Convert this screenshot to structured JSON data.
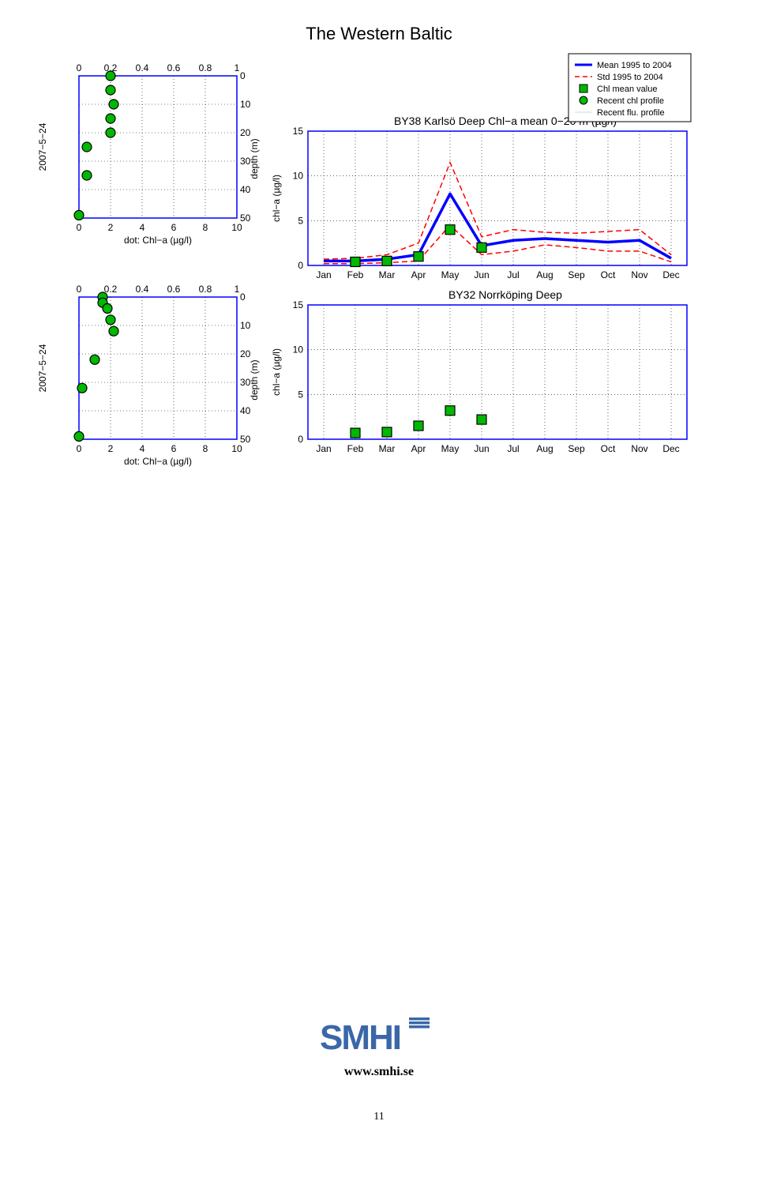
{
  "page_title": "The Western Baltic",
  "footer_url": "www.smhi.se",
  "page_number": "11",
  "logo_text": "SMHI",
  "logo_color": "#3a67a8",
  "legend": {
    "items": [
      {
        "label": "Mean 1995 to 2004",
        "type": "line",
        "color": "#0000ff",
        "width": 3,
        "dash": "none"
      },
      {
        "label": "Std 1995 to 2004",
        "type": "line",
        "color": "#ff0000",
        "width": 1.5,
        "dash": "6,4"
      },
      {
        "label": "Chl mean value",
        "type": "square",
        "fill": "#00b800",
        "stroke": "#000000"
      },
      {
        "label": "Recent chl profile",
        "type": "circle",
        "fill": "#00b800",
        "stroke": "#000000"
      },
      {
        "label": "Recent flu. profile",
        "type": "line",
        "color": "#c0e0c0",
        "width": 1,
        "dash": "none"
      }
    ]
  },
  "profile_common": {
    "date_label": "2007−5−24",
    "yaxis_label": "depth (m)",
    "xlabel_bottom": "dot: Chl−a (µg/l)",
    "top_ticks": [
      0,
      0.2,
      0.4,
      0.6,
      0.8,
      1
    ],
    "bottom_ticks": [
      0,
      2,
      4,
      6,
      8,
      10
    ],
    "depth_ticks": [
      0,
      10,
      20,
      30,
      40,
      50
    ],
    "depth_range": [
      0,
      50
    ],
    "box_color": "#0000ff",
    "grid_style": "1,3",
    "grid_color": "#000000",
    "dot_fill": "#00b800",
    "dot_stroke": "#000000",
    "dot_radius": 6
  },
  "profile1": {
    "dots_chl_depth": [
      [
        0.2,
        0
      ],
      [
        0.2,
        5
      ],
      [
        0.22,
        10
      ],
      [
        0.2,
        15
      ],
      [
        0.2,
        20
      ],
      [
        0.05,
        25
      ],
      [
        0.05,
        35
      ],
      [
        0.0,
        49
      ]
    ]
  },
  "profile2": {
    "dots_chl_depth": [
      [
        0.15,
        0
      ],
      [
        0.15,
        2
      ],
      [
        0.18,
        4
      ],
      [
        0.2,
        8
      ],
      [
        0.22,
        12
      ],
      [
        0.1,
        22
      ],
      [
        0.02,
        32
      ],
      [
        0.0,
        49
      ]
    ]
  },
  "ts_common": {
    "yaxis_label": "chl−a (µg/l)",
    "y_ticks": [
      0,
      5,
      10,
      15
    ],
    "y_range": [
      0,
      15
    ],
    "months": [
      "Jan",
      "Feb",
      "Mar",
      "Apr",
      "May",
      "Jun",
      "Jul",
      "Aug",
      "Sep",
      "Oct",
      "Nov",
      "Dec"
    ],
    "box_color": "#0000ff",
    "grid_style": "1,3",
    "grid_color": "#000000",
    "mean_color": "#0000ff",
    "mean_width": 3.5,
    "std_color": "#ff0000",
    "std_width": 1.5,
    "std_dash": "7,4",
    "square_fill": "#00b800",
    "square_stroke": "#000000",
    "square_size": 12
  },
  "ts1": {
    "title": "BY38 Karlsö Deep Chl−a mean 0−20 m (µg/l)",
    "mean": [
      0.5,
      0.5,
      0.7,
      1.2,
      8.0,
      2.2,
      2.8,
      3.0,
      2.8,
      2.6,
      2.8,
      0.8
    ],
    "std_upper": [
      0.7,
      0.8,
      1.2,
      2.5,
      11.5,
      3.2,
      4.0,
      3.7,
      3.6,
      3.8,
      4.0,
      1.2
    ],
    "std_lower": [
      0.2,
      0.2,
      0.3,
      0.5,
      4.5,
      1.2,
      1.6,
      2.3,
      2.0,
      1.6,
      1.6,
      0.4
    ],
    "squares": [
      {
        "month": 1,
        "value": 0.4
      },
      {
        "month": 2,
        "value": 0.5
      },
      {
        "month": 3,
        "value": 1.0
      },
      {
        "month": 4,
        "value": 4.0
      },
      {
        "month": 5,
        "value": 2.0
      }
    ]
  },
  "ts2": {
    "title": "BY32 Norrköping Deep",
    "squares": [
      {
        "month": 1,
        "value": 0.7
      },
      {
        "month": 2,
        "value": 0.8
      },
      {
        "month": 3,
        "value": 1.5
      },
      {
        "month": 4,
        "value": 3.2
      },
      {
        "month": 5,
        "value": 2.2
      }
    ]
  }
}
